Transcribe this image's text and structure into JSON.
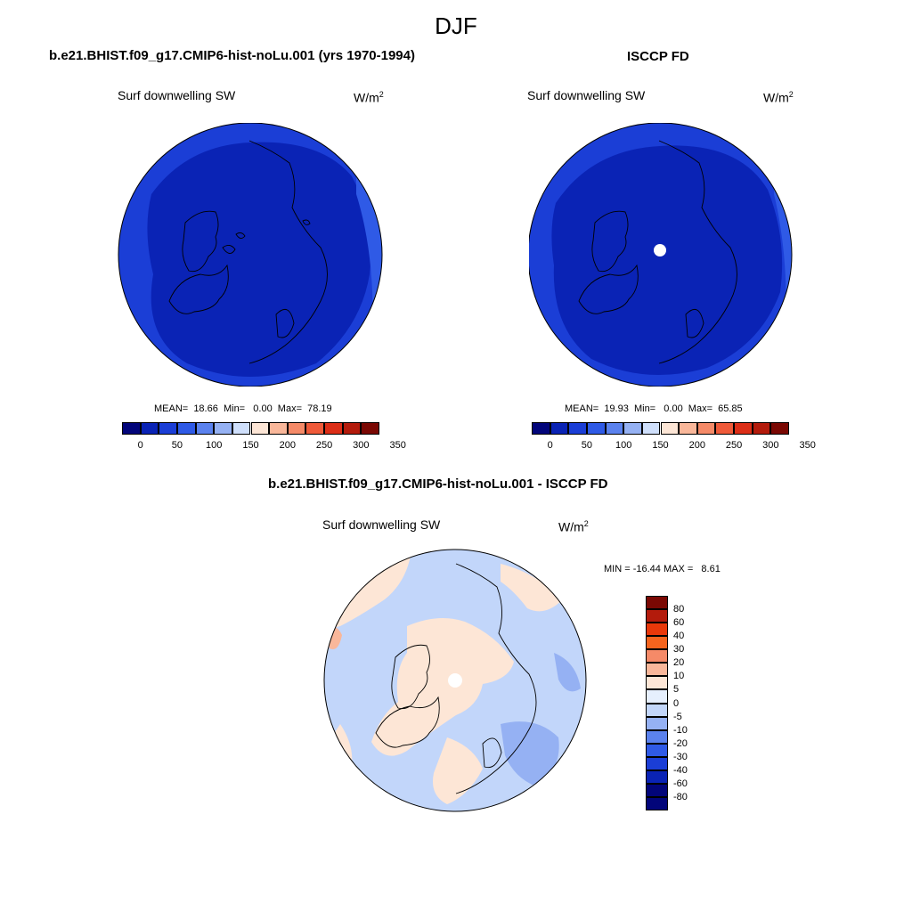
{
  "page": {
    "season_title": "DJF"
  },
  "panels": [
    {
      "title": "b.e21.BHIST.f09_g17.CMIP6-hist-noLu.001 (yrs 1970-1994)",
      "var_label": "Surf downwelling SW",
      "units_base": "W/m",
      "units_sup": "2",
      "stats": "MEAN=  18.66  Min=   0.00  Max=  78.19"
    },
    {
      "title": "ISCCP FD",
      "var_label": "Surf downwelling SW",
      "units_base": "W/m",
      "units_sup": "2",
      "stats": "MEAN=  19.93  Min=   0.00  Max=  65.85"
    },
    {
      "title": "b.e21.BHIST.f09_g17.CMIP6-hist-noLu.001 - ISCCP FD",
      "var_label": "Surf downwelling SW",
      "units_base": "W/m",
      "units_sup": "2",
      "stats": "MIN = -16.44 MAX =   8.61"
    }
  ],
  "colorbar_abs": {
    "colors": [
      "#02057a",
      "#0a23b5",
      "#1b3ed6",
      "#2f5ae6",
      "#5b82ee",
      "#95b1f3",
      "#cfdffb",
      "#fde6d6",
      "#f9b79a",
      "#f58a68",
      "#ef5a3a",
      "#dc2e17",
      "#b31b0c",
      "#7a0803"
    ],
    "tick_labels": [
      "0",
      "50",
      "100",
      "150",
      "200",
      "250",
      "300",
      "350"
    ]
  },
  "colorbar_diff": {
    "colors": [
      "#02057a",
      "#0a23b5",
      "#1b3ed6",
      "#2f5ae6",
      "#5b82ee",
      "#95b1f3",
      "#c2d6fa",
      "#e6effd",
      "#fde6d6",
      "#f9b79a",
      "#f58a68",
      "#f5641e",
      "#e8380a",
      "#b31b0c",
      "#7a0803"
    ],
    "tick_labels": [
      "80",
      "60",
      "40",
      "30",
      "20",
      "10",
      "5",
      "0",
      "-5",
      "-10",
      "-20",
      "-30",
      "-40",
      "-60",
      "-80"
    ]
  },
  "map_colors": {
    "model_dark": "#0a23b5",
    "model_mid": "#1b3ed6",
    "diff_blue": "#c2d6fa",
    "diff_peach": "#fde6d6",
    "diff_mid_blue": "#95b1f3",
    "diff_orange": "#f9b79a"
  }
}
